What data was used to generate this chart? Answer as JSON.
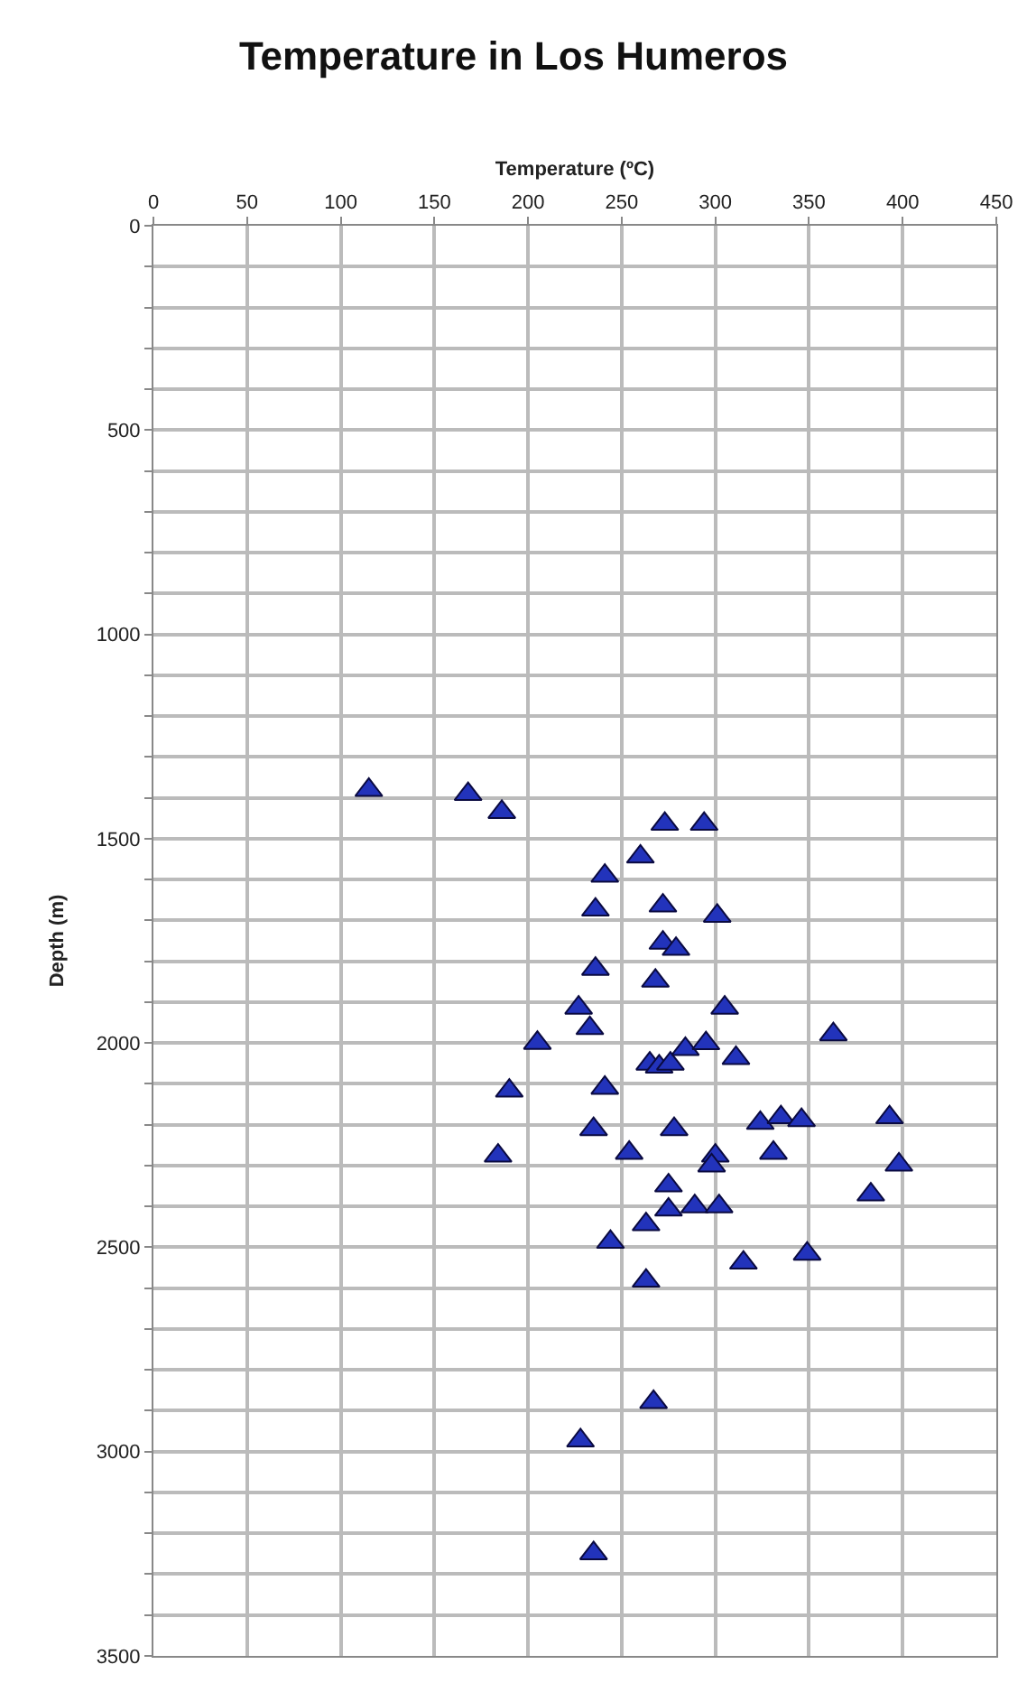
{
  "chart_data": {
    "type": "scatter",
    "title": "Temperature in Los Humeros",
    "xlabel": "Temperature (ºC)",
    "ylabel": "Depth (m)",
    "x": [
      115,
      168,
      186,
      273,
      294,
      260,
      241,
      236,
      272,
      301,
      272,
      279,
      236,
      268,
      227,
      305,
      233,
      205,
      363,
      265,
      270,
      276,
      284,
      295,
      311,
      241,
      190,
      235,
      278,
      324,
      335,
      346,
      393,
      184,
      254,
      300,
      298,
      331,
      398,
      275,
      275,
      289,
      302,
      383,
      263,
      244,
      315,
      349,
      263,
      267,
      228,
      235
    ],
    "series": [
      {
        "color": "#2233bb",
        "values": [
          1381,
          1391,
          1435,
          1464,
          1464,
          1544,
          1591,
          1674,
          1664,
          1689,
          1755,
          1770,
          1819,
          1848,
          1914,
          1914,
          1964,
          2000,
          1979,
          2051,
          2058,
          2051,
          2015,
          2001,
          2037,
          2110,
          2117,
          2211,
          2211,
          2196,
          2182,
          2189,
          2182,
          2276,
          2269,
          2276,
          2300,
          2269,
          2298,
          2349,
          2408,
          2400,
          2400,
          2371,
          2444,
          2487,
          2538,
          2516,
          2582,
          2879,
          2973,
          3249
        ]
      }
    ],
    "xlim": [
      0,
      450
    ],
    "xticks": [
      0,
      50,
      100,
      150,
      200,
      250,
      300,
      350,
      400,
      450
    ],
    "ylim": [
      3500,
      0
    ],
    "yticks": [
      0,
      {
        "value": 100,
        "label": null
      },
      {
        "value": 200,
        "label": null
      },
      {
        "value": 300,
        "label": null
      },
      {
        "value": 400,
        "label": null
      },
      500,
      {
        "value": 600,
        "label": null
      },
      {
        "value": 700,
        "label": null
      },
      {
        "value": 800,
        "label": null
      },
      {
        "value": 900,
        "label": null
      },
      1000,
      {
        "value": 1100,
        "label": null
      },
      {
        "value": 1200,
        "label": null
      },
      {
        "value": 1300,
        "label": null
      },
      {
        "value": 1400,
        "label": null
      },
      1500,
      {
        "value": 1600,
        "label": null
      },
      {
        "value": 1700,
        "label": null
      },
      {
        "value": 1800,
        "label": null
      },
      {
        "value": 1900,
        "label": null
      },
      2000,
      {
        "value": 2100,
        "label": null
      },
      {
        "value": 2200,
        "label": null
      },
      {
        "value": 2300,
        "label": null
      },
      {
        "value": 2400,
        "label": null
      },
      2500,
      {
        "value": 2600,
        "label": null
      },
      {
        "value": 2700,
        "label": null
      },
      {
        "value": 2800,
        "label": null
      },
      {
        "value": 2900,
        "label": null
      },
      3000,
      {
        "value": 3100,
        "label": null
      },
      {
        "value": 3200,
        "label": null
      },
      {
        "value": 3300,
        "label": null
      },
      {
        "value": 3400,
        "label": null
      },
      3500
    ],
    "grid": true,
    "marker": "triangle"
  }
}
